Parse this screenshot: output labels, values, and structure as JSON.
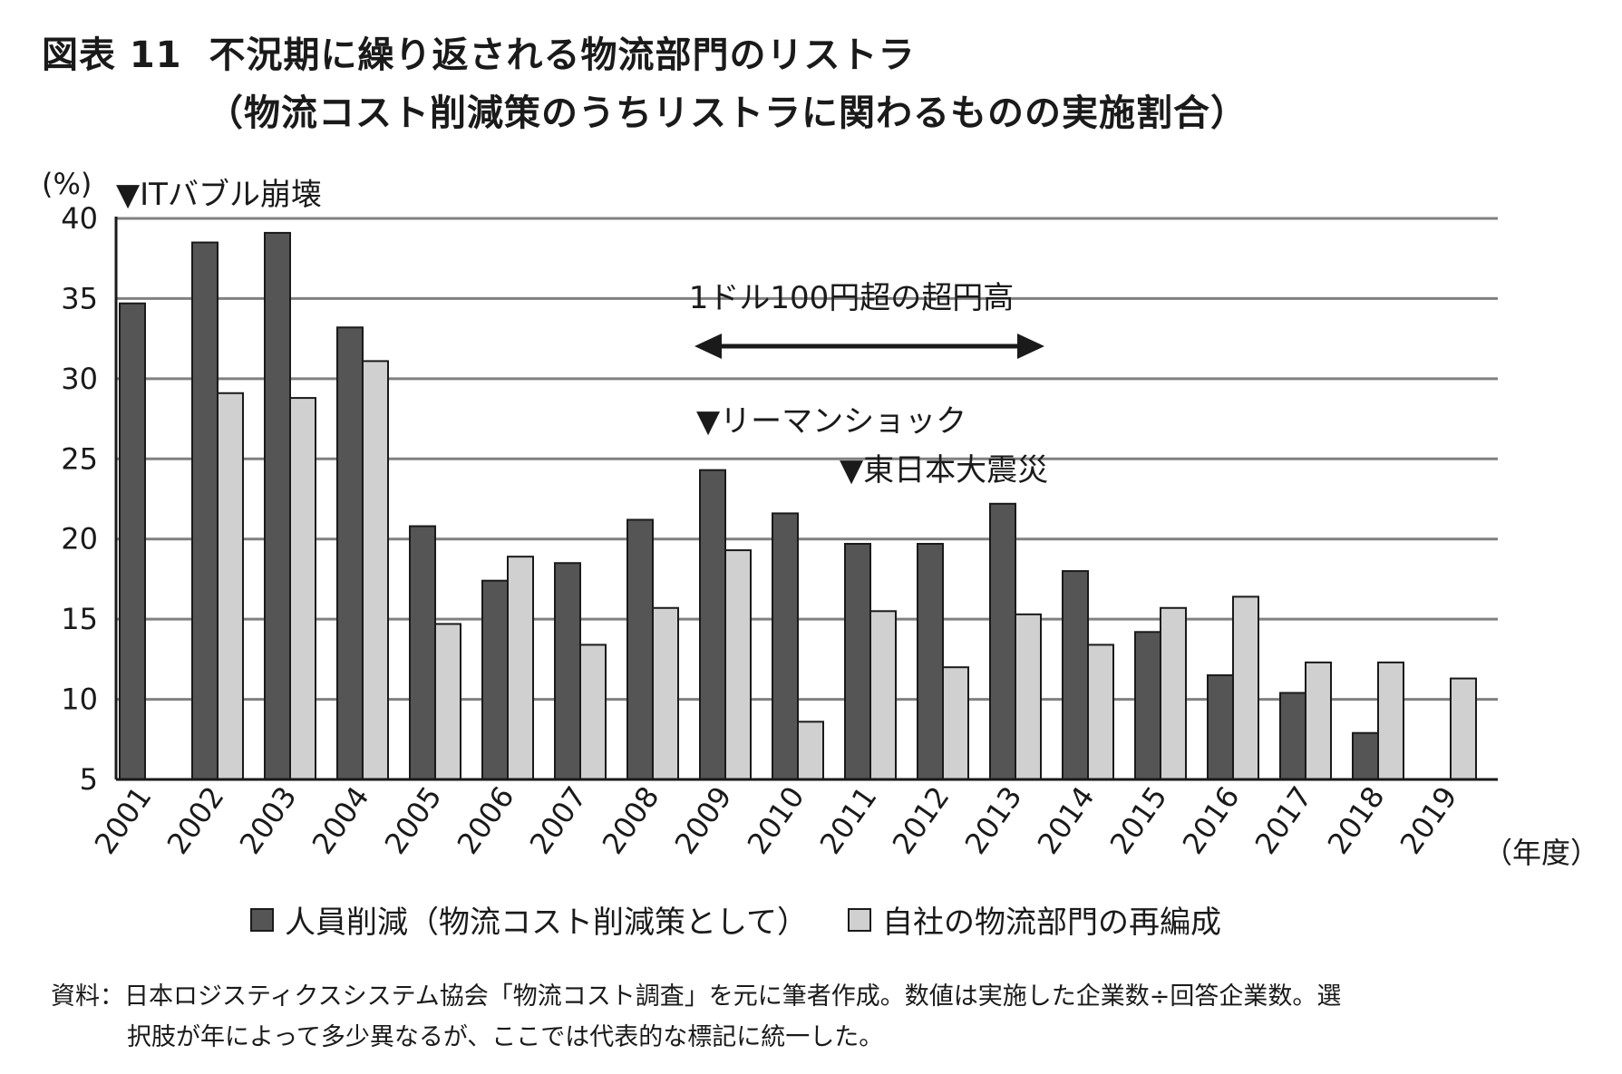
{
  "header": {
    "title_line1": "図表 11  不況期に繰り返される物流部門のリストラ",
    "title_line2": "（物流コスト削減策のうちリストラに関わるものの実施割合）"
  },
  "colors": {
    "series1": "#555555",
    "series2": "#d0d0d0",
    "grid": "#808080",
    "axis": "#1a1a1a"
  },
  "chart_data": {
    "type": "bar",
    "ylabel": "(%)",
    "xlabel": "（年度）",
    "ylim": [
      5,
      40
    ],
    "yticks": [
      5,
      10,
      15,
      20,
      25,
      30,
      35,
      40
    ],
    "categories": [
      "2001",
      "2002",
      "2003",
      "2004",
      "2005",
      "2006",
      "2007",
      "2008",
      "2009",
      "2010",
      "2011",
      "2012",
      "2013",
      "2014",
      "2015",
      "2016",
      "2017",
      "2018",
      "2019"
    ],
    "series": [
      {
        "name": "人員削減（物流コスト削減策として）",
        "values": [
          34.7,
          38.5,
          39.1,
          33.2,
          20.8,
          17.4,
          18.5,
          21.2,
          24.3,
          21.6,
          19.7,
          19.7,
          22.2,
          18.0,
          14.2,
          11.5,
          10.4,
          7.9,
          null
        ]
      },
      {
        "name": "自社の物流部門の再編成",
        "values": [
          null,
          29.1,
          28.8,
          31.1,
          14.7,
          18.9,
          13.4,
          15.7,
          19.3,
          8.6,
          15.5,
          12.0,
          15.3,
          13.4,
          15.7,
          16.4,
          12.3,
          12.3,
          11.3
        ]
      }
    ],
    "annotations": [
      {
        "label": "▼ITバブル崩壊",
        "category": "2001"
      },
      {
        "label": "1ドル100円超の超円高",
        "category_range": [
          "2009",
          "2013"
        ]
      },
      {
        "label": "▼リーマンショック",
        "category": "2009"
      },
      {
        "label": "▼東日本大震災",
        "category": "2011"
      }
    ]
  },
  "legend": {
    "item1": "人員削減（物流コスト削減策として）",
    "item2": "自社の物流部門の再編成"
  },
  "source": {
    "line1": "資料：日本ロジスティクスシステム協会「物流コスト調査」を元に筆者作成。数値は実施した企業数÷回答企業数。選",
    "line2": "択肢が年によって多少異なるが、ここでは代表的な標記に統一した。"
  }
}
